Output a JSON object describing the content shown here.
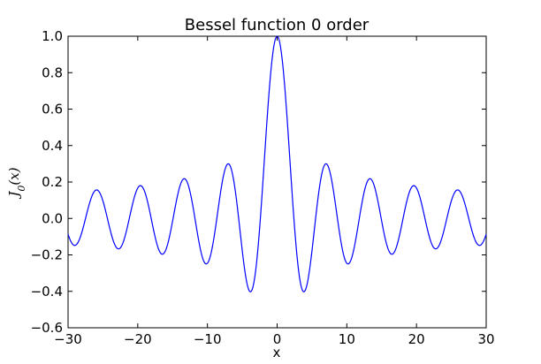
{
  "chart_data": {
    "type": "line",
    "title": "Bessel function 0 order",
    "xlabel": "x",
    "ylabel": "J_0(x)",
    "xlim": [
      -30,
      30
    ],
    "ylim": [
      -0.6,
      1.0
    ],
    "xticks": [
      -30,
      -20,
      -10,
      0,
      10,
      20,
      30
    ],
    "xtick_labels": [
      "−30",
      "−20",
      "−10",
      "0",
      "10",
      "20",
      "30"
    ],
    "yticks": [
      -0.6,
      -0.4,
      -0.2,
      0.0,
      0.2,
      0.4,
      0.6,
      0.8,
      1.0
    ],
    "ytick_labels": [
      "−0.6",
      "−0.4",
      "−0.2",
      "0.0",
      "0.2",
      "0.4",
      "0.6",
      "0.8",
      "1.0"
    ],
    "grid": false,
    "series": [
      {
        "function": "J0",
        "color": "#0000ff",
        "x_range": [
          -30,
          30
        ],
        "num_points": 601
      }
    ]
  }
}
